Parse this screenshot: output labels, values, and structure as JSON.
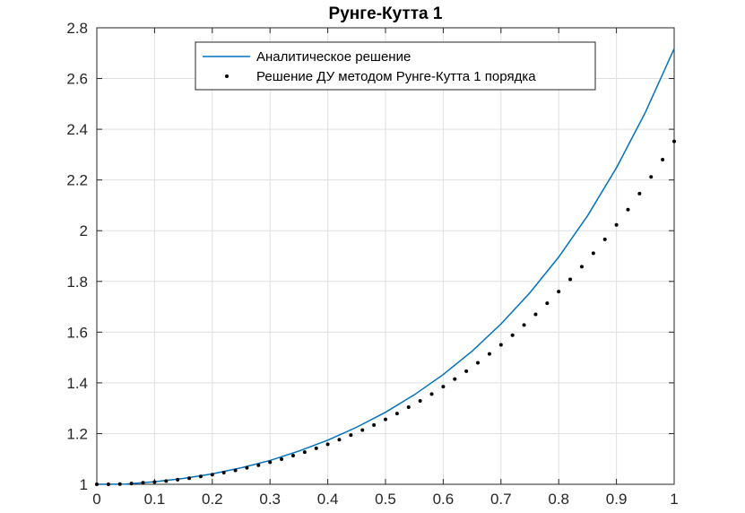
{
  "chart_data": {
    "type": "line",
    "title": "Рунге-Кутта 1",
    "xlabel": "",
    "ylabel": "",
    "xlim": [
      0,
      1
    ],
    "ylim": [
      1,
      2.8
    ],
    "xticks": [
      0,
      0.1,
      0.2,
      0.3,
      0.4,
      0.5,
      0.6,
      0.7,
      0.8,
      0.9,
      1
    ],
    "xtick_labels": [
      "0",
      "0.1",
      "0.2",
      "0.3",
      "0.4",
      "0.5",
      "0.6",
      "0.7",
      "0.8",
      "0.9",
      "1"
    ],
    "yticks": [
      1,
      1.2,
      1.4,
      1.6,
      1.8,
      2,
      2.2,
      2.4,
      2.6,
      2.8
    ],
    "ytick_labels": [
      "1",
      "1.2",
      "1.4",
      "1.6",
      "1.8",
      "2",
      "2.2",
      "2.4",
      "2.6",
      "2.8"
    ],
    "grid": true,
    "legend_position": "top",
    "series": [
      {
        "name": "Аналитическое решение",
        "style": "line",
        "color": "#0072BD",
        "x": [
          0,
          0.05,
          0.1,
          0.15,
          0.2,
          0.25,
          0.3,
          0.35,
          0.4,
          0.45,
          0.5,
          0.55,
          0.6,
          0.65,
          0.7,
          0.75,
          0.8,
          0.85,
          0.9,
          0.95,
          1.0
        ],
        "y": [
          1.0,
          1.001,
          1.01,
          1.023,
          1.041,
          1.065,
          1.094,
          1.131,
          1.174,
          1.225,
          1.284,
          1.353,
          1.433,
          1.525,
          1.632,
          1.755,
          1.896,
          2.059,
          2.248,
          2.466,
          2.718
        ]
      },
      {
        "name": "Решение ДУ методом Рунге-Кутта 1 порядка",
        "style": "markers",
        "color": "#000000",
        "x": [
          0,
          0.02,
          0.04,
          0.06,
          0.08,
          0.1,
          0.12,
          0.14,
          0.16,
          0.18,
          0.2,
          0.22,
          0.24,
          0.26,
          0.28,
          0.3,
          0.32,
          0.34,
          0.36,
          0.38,
          0.4,
          0.42,
          0.44,
          0.46,
          0.48,
          0.5,
          0.52,
          0.54,
          0.56,
          0.58,
          0.6,
          0.62,
          0.64,
          0.66,
          0.68,
          0.7,
          0.72,
          0.74,
          0.76,
          0.78,
          0.8,
          0.82,
          0.84,
          0.86,
          0.88,
          0.9,
          0.92,
          0.94,
          0.96,
          0.98,
          1.0
        ],
        "y": [
          1.0,
          1.0,
          1.001,
          1.003,
          1.006,
          1.009,
          1.013,
          1.018,
          1.024,
          1.031,
          1.038,
          1.046,
          1.055,
          1.065,
          1.075,
          1.087,
          1.099,
          1.113,
          1.127,
          1.142,
          1.158,
          1.176,
          1.194,
          1.214,
          1.234,
          1.256,
          1.279,
          1.304,
          1.329,
          1.356,
          1.385,
          1.415,
          1.446,
          1.479,
          1.514,
          1.55,
          1.588,
          1.628,
          1.67,
          1.714,
          1.76,
          1.808,
          1.858,
          1.911,
          1.966,
          2.023,
          2.083,
          2.146,
          2.212,
          2.28,
          2.352
        ]
      }
    ]
  }
}
